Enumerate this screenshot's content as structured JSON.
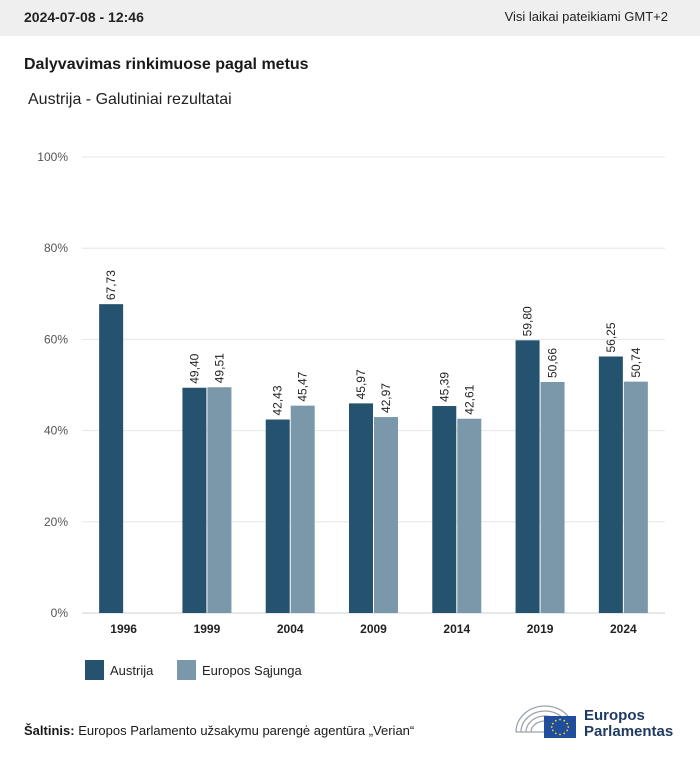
{
  "header": {
    "datetime": "2024-07-08 - 12:46",
    "timezone_note": "Visi laikai pateikiami GMT+2"
  },
  "chart_title": "Dalyvavimas rinkimuose pagal metus",
  "chart_subtitle": "Austrija - Galutiniai rezultatai",
  "chart_data": {
    "type": "bar",
    "title": "Dalyvavimas rinkimuose pagal metus",
    "subtitle": "Austrija - Galutiniai rezultatai",
    "categories": [
      "1996",
      "1999",
      "2004",
      "2009",
      "2014",
      "2019",
      "2024"
    ],
    "series": [
      {
        "name": "Austrija",
        "color": "#25526e",
        "values": [
          67.73,
          49.4,
          42.43,
          45.97,
          45.39,
          59.8,
          56.25
        ],
        "labels": [
          "67,73",
          "49,40",
          "42,43",
          "45,97",
          "45,39",
          "59,80",
          "56,25"
        ]
      },
      {
        "name": "Europos Sąjunga",
        "color": "#7b98ab",
        "values": [
          null,
          49.51,
          45.47,
          42.97,
          42.61,
          50.66,
          50.74
        ],
        "labels": [
          "",
          "49,51",
          "45,47",
          "42,97",
          "42,61",
          "50,66",
          "50,74"
        ]
      }
    ],
    "ylim": [
      0,
      100
    ],
    "yticks": [
      0,
      20,
      40,
      60,
      80,
      100
    ],
    "ytick_labels": [
      "0%",
      "20%",
      "40%",
      "60%",
      "80%",
      "100%"
    ],
    "xlabel": "",
    "ylabel": "",
    "grid": true,
    "legend_position": "bottom-left"
  },
  "legend": [
    {
      "label": "Austrija",
      "color": "#25526e"
    },
    {
      "label": "Europos Sąjunga",
      "color": "#7b98ab"
    }
  ],
  "source": {
    "prefix": "Šaltinis:",
    "text": "Europos Parlamento užsakymu parengė agentūra „Verian“"
  },
  "logo": {
    "line1": "Europos",
    "line2": "Parlamentas"
  }
}
